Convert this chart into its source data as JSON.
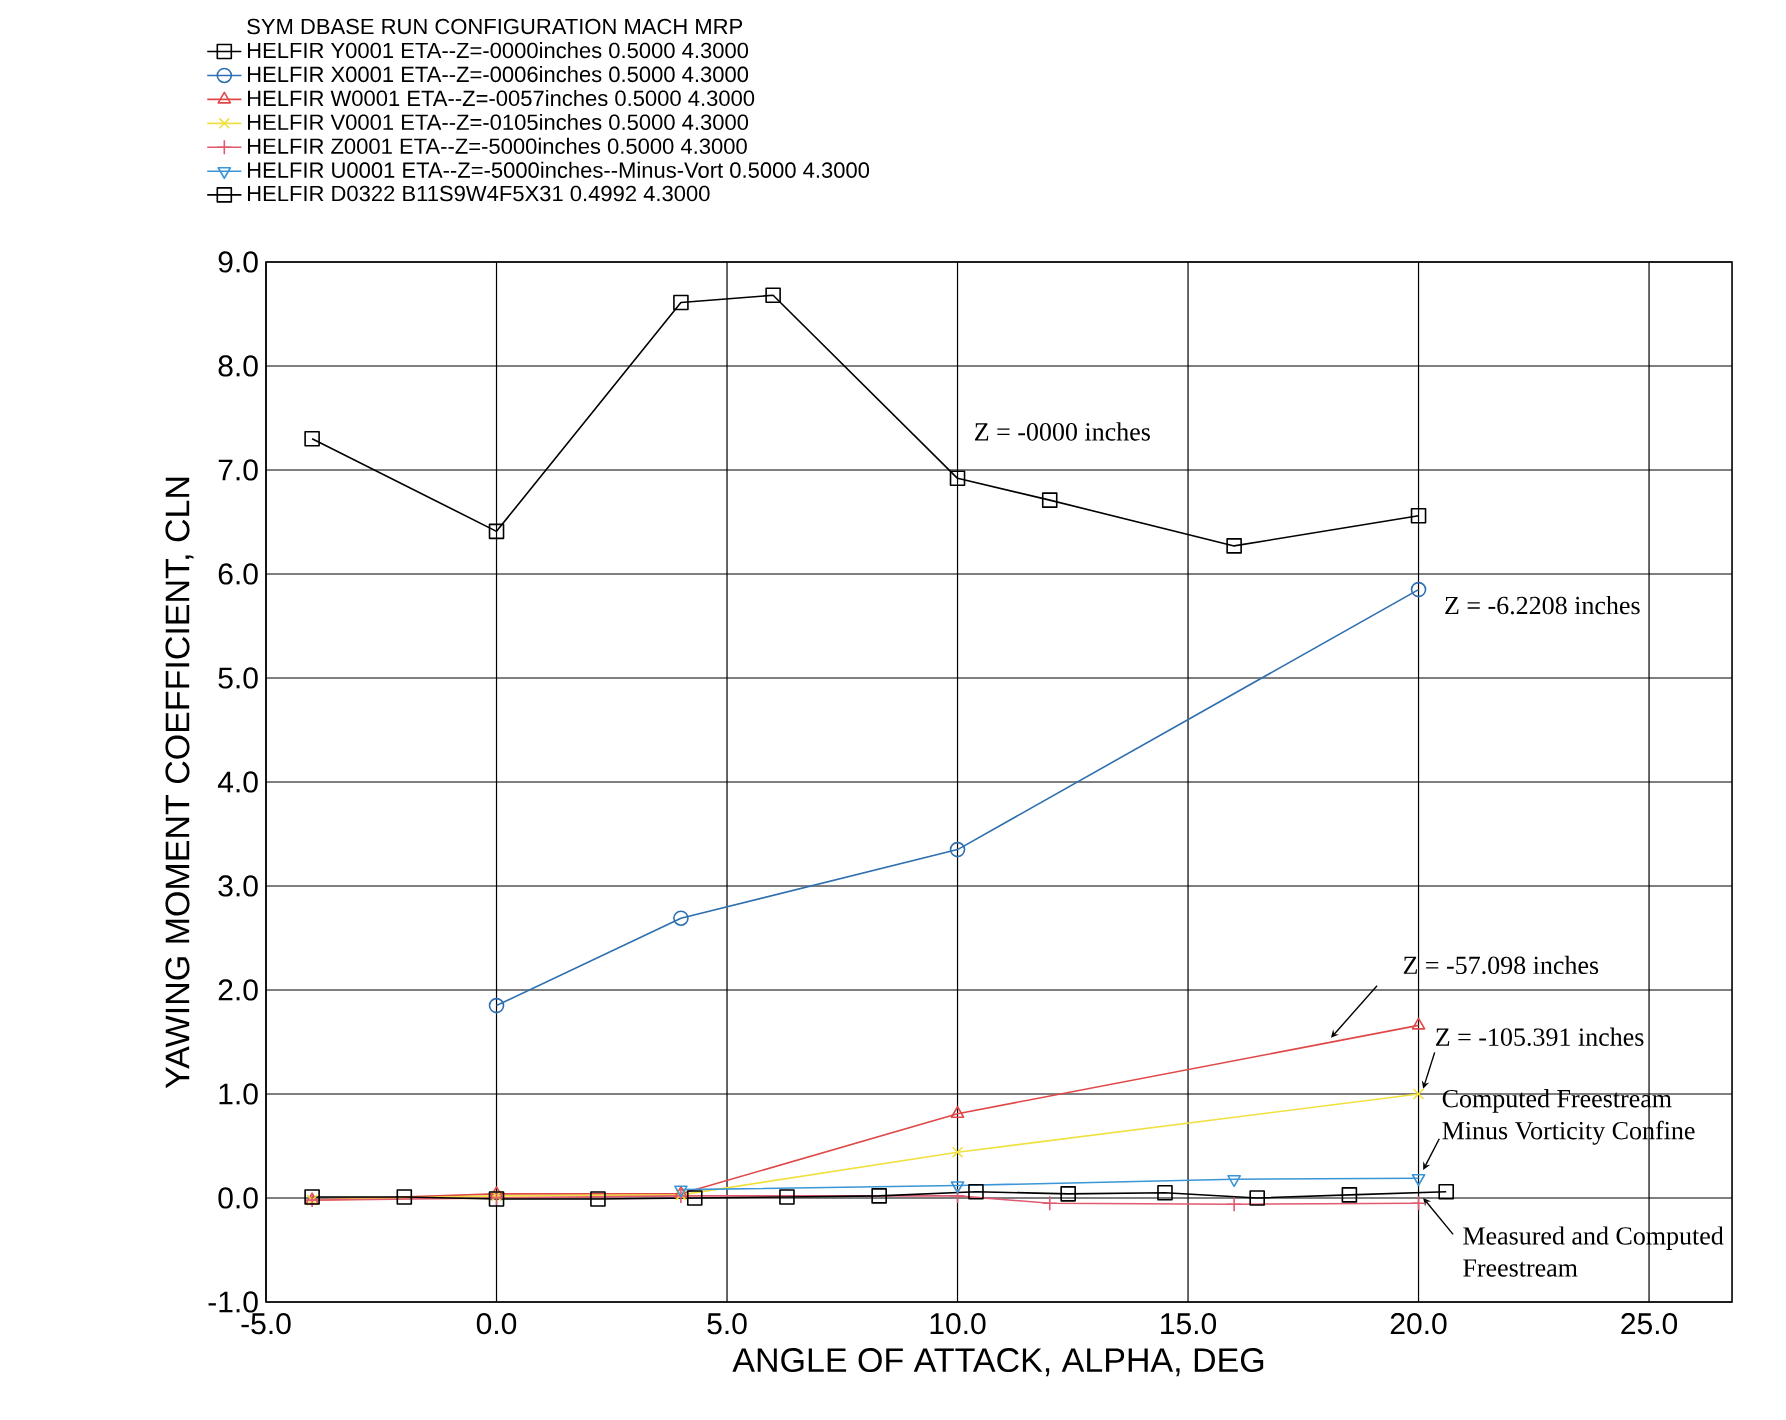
{
  "chart_data": {
    "type": "line",
    "xlabel": "ANGLE OF ATTACK, ALPHA, DEG",
    "ylabel": "YAWING MOMENT COEFFICIENT, CLN",
    "legend_title": "SYM     DBASE     RUN     CONFIGURATION     MACH     MRP",
    "xlim": [
      -5,
      26.8
    ],
    "ylim": [
      -1,
      9
    ],
    "xticks": [
      {
        "value": -5,
        "label": "-5.0"
      },
      {
        "value": 0,
        "label": "0.0"
      },
      {
        "value": 5,
        "label": "5.0"
      },
      {
        "value": 10,
        "label": "10.0"
      },
      {
        "value": 15,
        "label": "15.0"
      },
      {
        "value": 20,
        "label": "20.0"
      },
      {
        "value": 25,
        "label": "25.0"
      }
    ],
    "yticks": [
      {
        "value": -1,
        "label": "-1.0"
      },
      {
        "value": 0,
        "label": "0.0"
      },
      {
        "value": 1,
        "label": "1.0"
      },
      {
        "value": 2,
        "label": "2.0"
      },
      {
        "value": 3,
        "label": "3.0"
      },
      {
        "value": 4,
        "label": "4.0"
      },
      {
        "value": 5,
        "label": "5.0"
      },
      {
        "value": 6,
        "label": "6.0"
      },
      {
        "value": 7,
        "label": "7.0"
      },
      {
        "value": 8,
        "label": "8.0"
      },
      {
        "value": 9,
        "label": "9.0"
      }
    ],
    "grid": true,
    "legend": "top",
    "line_style": "solid",
    "series": [
      {
        "name": "HELFIR Y0001 ETA--Z=-0000inches 0.5000 4.3000",
        "color": "#000000",
        "marker": "square",
        "x": [
          -4,
          0,
          4,
          6,
          10,
          12,
          16,
          20
        ],
        "values": [
          7.3,
          6.41,
          8.61,
          8.68,
          6.92,
          6.71,
          6.27,
          6.56
        ]
      },
      {
        "name": "HELFIR X0001 ETA--Z=-0006inches 0.5000 4.3000",
        "color": "#2e6fb0",
        "marker": "circle",
        "x": [
          0,
          4,
          10,
          20
        ],
        "values": [
          1.85,
          2.69,
          3.35,
          5.85
        ]
      },
      {
        "name": "HELFIR W0001 ETA--Z=-0057inches 0.5000 4.3000",
        "color": "#e04848",
        "marker": "triangle",
        "x": [
          -4,
          0,
          4,
          10,
          20
        ],
        "values": [
          -0.02,
          0.04,
          0.04,
          0.81,
          1.66
        ]
      },
      {
        "name": "HELFIR V0001 ETA--Z=-0105inches 0.5000 4.3000",
        "color": "#f0e040",
        "marker": "cross",
        "x": [
          -4,
          0,
          4,
          10,
          20
        ],
        "values": [
          -0.02,
          0.02,
          0.03,
          0.44,
          1.0
        ]
      },
      {
        "name": "HELFIR Z0001 ETA--Z=-5000inches 0.5000 4.3000",
        "color": "#e05a70",
        "marker": "plus",
        "x": [
          -4,
          0,
          4,
          10,
          12,
          16,
          20
        ],
        "values": [
          -0.02,
          0.0,
          0.02,
          0.02,
          -0.05,
          -0.06,
          -0.05
        ]
      },
      {
        "name": "HELFIR U0001 ETA--Z=-5000inches--Minus-Vort 0.5000 4.3000",
        "color": "#3a96d6",
        "marker": "triangle-down",
        "x": [
          4,
          10,
          16,
          20
        ],
        "values": [
          0.08,
          0.12,
          0.18,
          0.19
        ]
      },
      {
        "name": "HELFIR D0322 B11S9W4F5X31 0.4992 4.3000",
        "color": "#000000",
        "marker": "square",
        "x": [
          -4,
          -2,
          0,
          2.2,
          4.3,
          6.3,
          8.3,
          10.4,
          12.4,
          14.5,
          16.5,
          18.5,
          20.6
        ],
        "values": [
          0.01,
          0.01,
          -0.01,
          -0.01,
          0.0,
          0.01,
          0.02,
          0.06,
          0.04,
          0.05,
          0.0,
          0.03,
          0.06
        ]
      }
    ],
    "annotations": [
      {
        "text": "Z = -0000 inches",
        "x": 10,
        "y": 6.92
      },
      {
        "text": "Z = -6.2208 inches",
        "x": 20,
        "y": 5.85
      },
      {
        "text": "Z = -57.098 inches",
        "x": 18,
        "y": 1.49
      },
      {
        "text": "Z = -105.391 inches",
        "x": 20,
        "y": 1.0
      },
      {
        "text": "Computed Freestream Minus Vorticity Confine",
        "x": 20,
        "y": 0.22
      },
      {
        "text": "Measured and Computed Freestream",
        "x": 20,
        "y": -0.05
      }
    ]
  }
}
